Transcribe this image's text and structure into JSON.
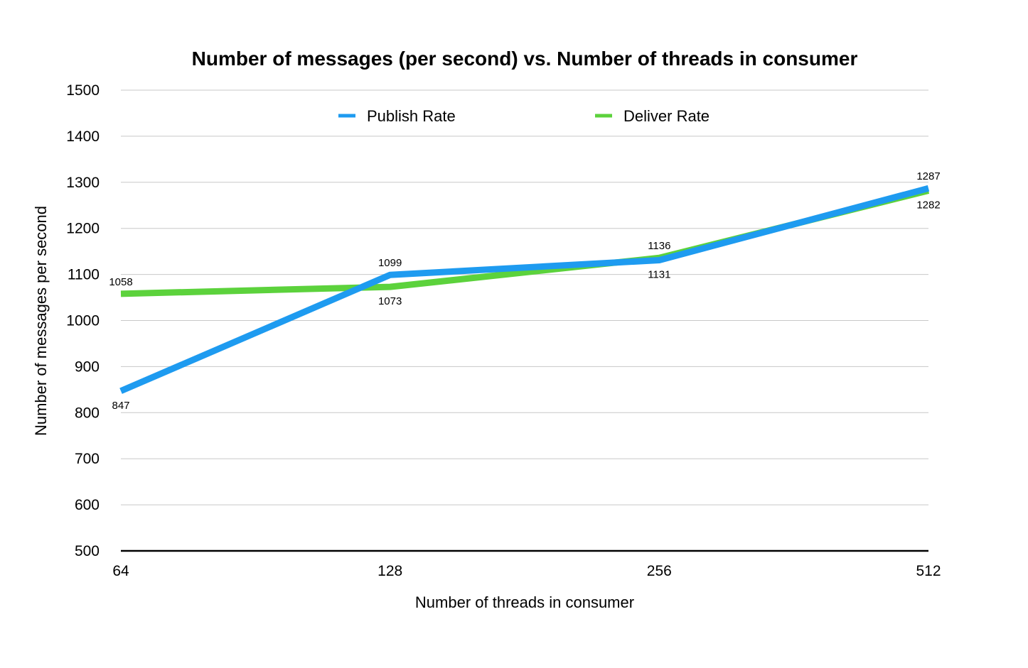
{
  "chart_data": {
    "type": "line",
    "title": "Number of messages (per second) vs. Number of threads in consumer",
    "xlabel": "Number of threads in consumer",
    "ylabel": "Number of messages per second",
    "categories": [
      "64",
      "128",
      "256",
      "512"
    ],
    "ylim": [
      500,
      1500
    ],
    "yticks": [
      500,
      600,
      700,
      800,
      900,
      1000,
      1100,
      1200,
      1300,
      1400,
      1500
    ],
    "grid": true,
    "legend_position": "top",
    "series": [
      {
        "name": "Publish Rate",
        "color": "#1E9BF0",
        "values": [
          847,
          1099,
          1131,
          1287
        ]
      },
      {
        "name": "Deliver Rate",
        "color": "#5CD23C",
        "values": [
          1058,
          1073,
          1136,
          1282
        ]
      }
    ]
  }
}
